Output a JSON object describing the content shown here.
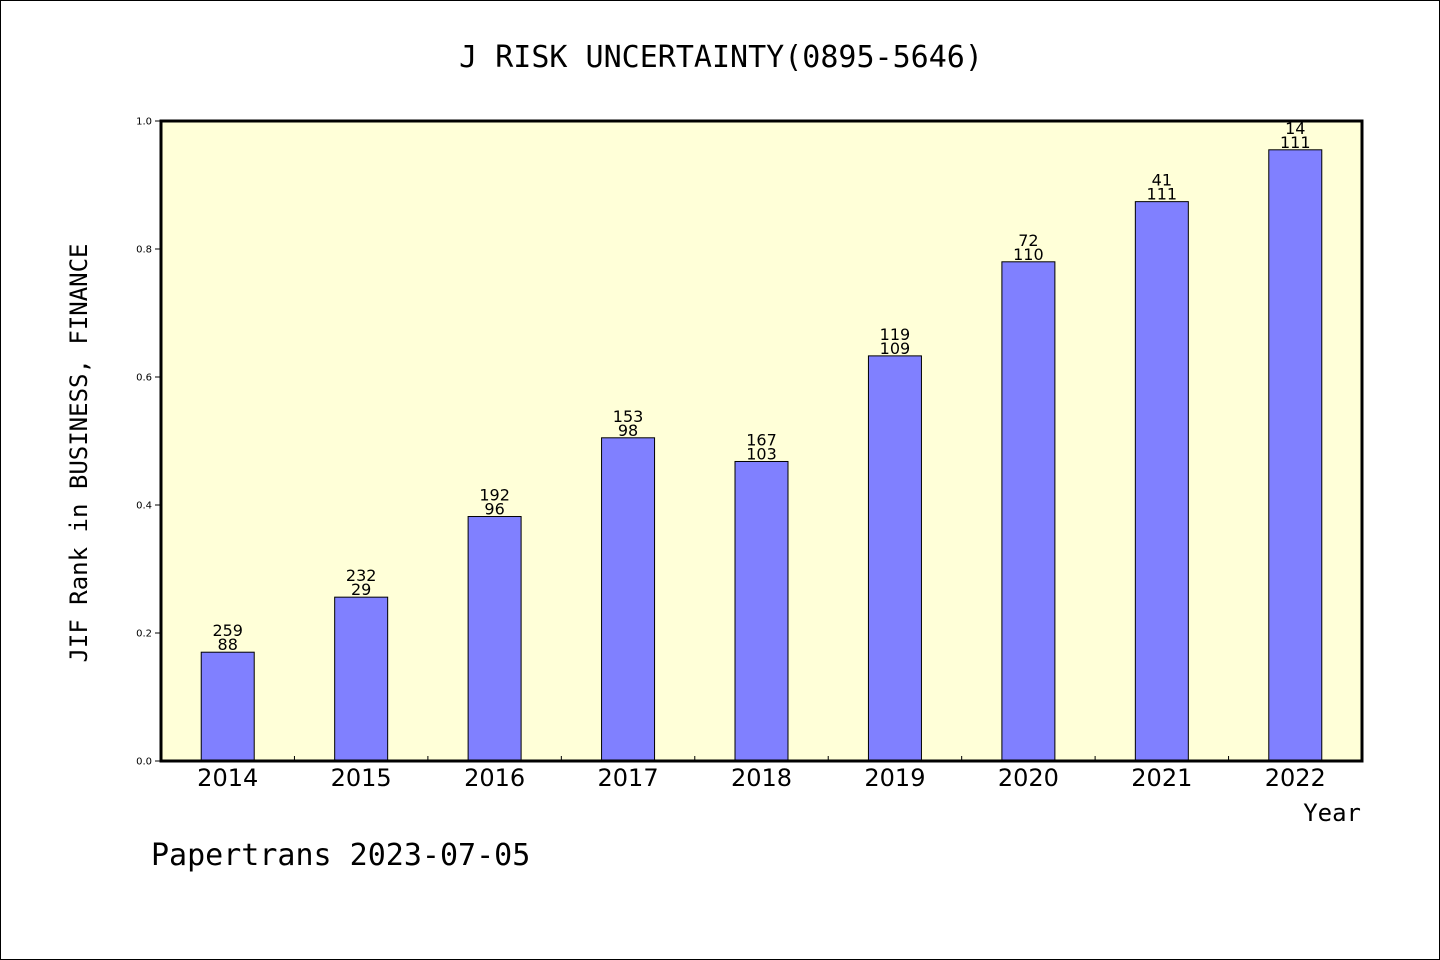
{
  "chart_data": {
    "type": "bar",
    "title": "J RISK UNCERTAINTY(0895-5646)",
    "xlabel": "Year",
    "ylabel": "JIF Rank in BUSINESS, FINANCE",
    "ylim": [
      0,
      1.0
    ],
    "yticks": [
      "0.0",
      "0.2",
      "0.4",
      "0.6",
      "0.8",
      "1.0"
    ],
    "categories": [
      "2014",
      "2015",
      "2016",
      "2017",
      "2018",
      "2019",
      "2020",
      "2021",
      "2022"
    ],
    "values": [
      0.17,
      0.256,
      0.382,
      0.505,
      0.468,
      0.633,
      0.78,
      0.874,
      0.955
    ],
    "labels_top": [
      "259",
      "232",
      "192",
      "153",
      "167",
      "119",
      "72",
      "41",
      "14"
    ],
    "labels_bottom": [
      "88",
      "29",
      "96",
      "98",
      "103",
      "109",
      "110",
      "111",
      "111"
    ],
    "plot_background": "#ffffd8",
    "bar_color": "#8080ff",
    "grid": false
  },
  "footer": "Papertrans 2023-07-05"
}
